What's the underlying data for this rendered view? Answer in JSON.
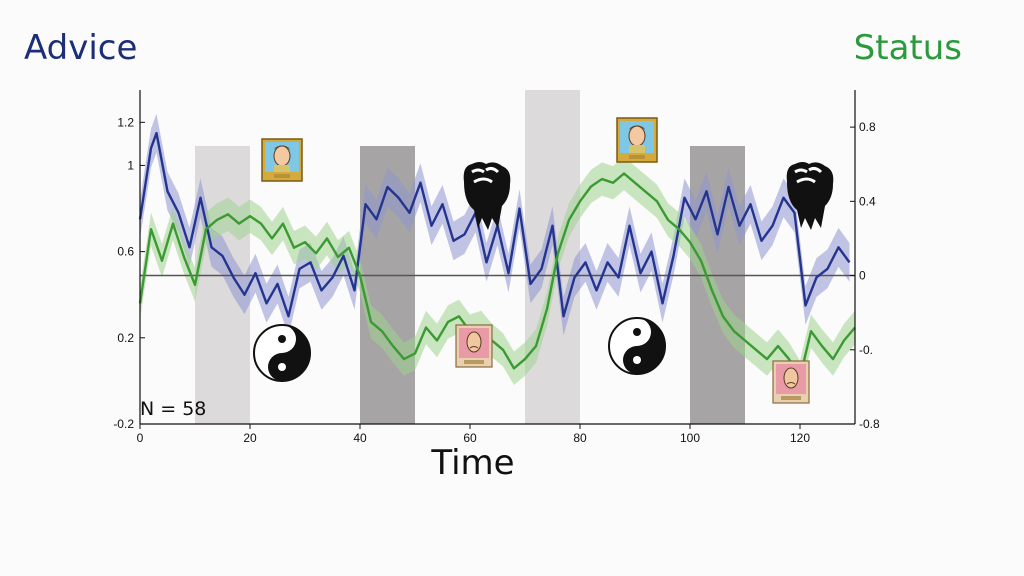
{
  "left_title": "Advice",
  "right_title": "Status",
  "colors": {
    "advice": "#24358f",
    "advice_band": "#8f96d0",
    "status": "#3b9a32",
    "status_band": "#9fd38f",
    "baseline": "#555555",
    "light_block": "#dcdadb",
    "dark_block": "#a6a4a5"
  },
  "icons": [
    "portrait-icon",
    "fist-icon",
    "yin-yang-icon",
    "sad-portrait-icon"
  ],
  "chart_data": {
    "type": "line",
    "title": "",
    "xlabel": "Time",
    "ylabel": "",
    "xlim": [
      0,
      130
    ],
    "ylim": [
      -0.2,
      1.35
    ],
    "y2lim": [
      -0.8,
      1.0
    ],
    "xticks": [
      "0",
      "20",
      "40",
      "60",
      "80",
      "100",
      "120"
    ],
    "yticks": [
      "-0.2",
      "0.2",
      "0.6",
      "1",
      "1.2"
    ],
    "y2ticks": [
      "-0.8",
      "-0.",
      "0",
      "0.4",
      "0.8"
    ],
    "annotation": "N = 58",
    "shaded_intervals": [
      {
        "x": [
          10,
          20
        ],
        "shade": "light"
      },
      {
        "x": [
          40,
          50
        ],
        "shade": "dark"
      },
      {
        "x": [
          70,
          80
        ],
        "shade": "light"
      },
      {
        "x": [
          100,
          110
        ],
        "shade": "dark"
      }
    ],
    "series": [
      {
        "key": "advice",
        "axis": "left",
        "band": 0.09,
        "x": [
          0,
          2,
          3,
          5,
          7,
          9,
          11,
          13,
          15,
          17,
          19,
          21,
          23,
          25,
          27,
          29,
          31,
          33,
          35,
          37,
          39,
          41,
          43,
          45,
          47,
          49,
          51,
          53,
          55,
          57,
          59,
          61,
          63,
          65,
          67,
          69,
          71,
          73,
          75,
          77,
          79,
          81,
          83,
          85,
          87,
          89,
          91,
          93,
          95,
          97,
          99,
          101,
          103,
          105,
          107,
          109,
          111,
          113,
          115,
          117,
          119,
          121,
          123,
          125,
          127,
          129
        ],
        "values": [
          0.75,
          1.08,
          1.15,
          0.88,
          0.78,
          0.62,
          0.85,
          0.62,
          0.58,
          0.48,
          0.4,
          0.5,
          0.36,
          0.45,
          0.3,
          0.52,
          0.55,
          0.42,
          0.48,
          0.58,
          0.42,
          0.82,
          0.75,
          0.9,
          0.85,
          0.78,
          0.92,
          0.72,
          0.82,
          0.65,
          0.68,
          0.78,
          0.55,
          0.72,
          0.5,
          0.8,
          0.45,
          0.52,
          0.72,
          0.3,
          0.48,
          0.55,
          0.42,
          0.55,
          0.48,
          0.72,
          0.5,
          0.6,
          0.36,
          0.58,
          0.85,
          0.75,
          0.88,
          0.68,
          0.9,
          0.72,
          0.82,
          0.65,
          0.72,
          0.85,
          0.78,
          0.35,
          0.48,
          0.52,
          0.62,
          0.55
        ]
      },
      {
        "key": "status",
        "axis": "right",
        "band": 0.09,
        "x": [
          0,
          2,
          4,
          6,
          8,
          10,
          12,
          14,
          16,
          18,
          20,
          22,
          24,
          26,
          28,
          30,
          32,
          34,
          36,
          38,
          40,
          42,
          44,
          46,
          48,
          50,
          52,
          54,
          56,
          58,
          60,
          62,
          64,
          66,
          68,
          70,
          72,
          74,
          76,
          78,
          80,
          82,
          84,
          86,
          88,
          90,
          92,
          94,
          96,
          98,
          100,
          102,
          104,
          106,
          108,
          110,
          112,
          114,
          116,
          118,
          120,
          122,
          124,
          126,
          128,
          130
        ],
        "values": [
          -0.15,
          0.25,
          0.08,
          0.28,
          0.1,
          -0.05,
          0.25,
          0.3,
          0.33,
          0.28,
          0.32,
          0.28,
          0.2,
          0.28,
          0.15,
          0.18,
          0.12,
          0.2,
          0.1,
          0.15,
          0.0,
          -0.25,
          -0.3,
          -0.38,
          -0.45,
          -0.42,
          -0.28,
          -0.35,
          -0.25,
          -0.22,
          -0.3,
          -0.28,
          -0.35,
          -0.4,
          -0.5,
          -0.45,
          -0.38,
          -0.18,
          0.12,
          0.3,
          0.4,
          0.48,
          0.52,
          0.5,
          0.55,
          0.5,
          0.45,
          0.4,
          0.3,
          0.25,
          0.18,
          0.08,
          -0.08,
          -0.22,
          -0.3,
          -0.35,
          -0.4,
          -0.45,
          -0.38,
          -0.45,
          -0.55,
          -0.3,
          -0.38,
          -0.45,
          -0.35,
          -0.28
        ]
      }
    ]
  }
}
